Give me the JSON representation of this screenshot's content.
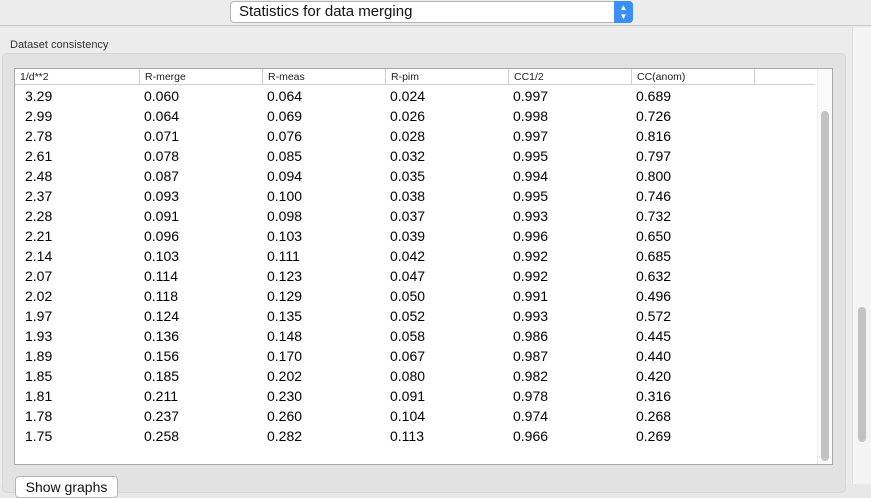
{
  "header": {
    "selector_value": "Statistics for data merging"
  },
  "group": {
    "title": "Dataset consistency"
  },
  "table": {
    "columns": [
      "1/d**2",
      "R-merge",
      "R-meas",
      "R-pim",
      "CC1/2",
      "CC(anom)"
    ],
    "rows": [
      [
        "3.29",
        "0.060",
        "0.064",
        "0.024",
        "0.997",
        "0.689"
      ],
      [
        "2.99",
        "0.064",
        "0.069",
        "0.026",
        "0.998",
        "0.726"
      ],
      [
        "2.78",
        "0.071",
        "0.076",
        "0.028",
        "0.997",
        "0.816"
      ],
      [
        "2.61",
        "0.078",
        "0.085",
        "0.032",
        "0.995",
        "0.797"
      ],
      [
        "2.48",
        "0.087",
        "0.094",
        "0.035",
        "0.994",
        "0.800"
      ],
      [
        "2.37",
        "0.093",
        "0.100",
        "0.038",
        "0.995",
        "0.746"
      ],
      [
        "2.28",
        "0.091",
        "0.098",
        "0.037",
        "0.993",
        "0.732"
      ],
      [
        "2.21",
        "0.096",
        "0.103",
        "0.039",
        "0.996",
        "0.650"
      ],
      [
        "2.14",
        "0.103",
        "0.111",
        "0.042",
        "0.992",
        "0.685"
      ],
      [
        "2.07",
        "0.114",
        "0.123",
        "0.047",
        "0.992",
        "0.632"
      ],
      [
        "2.02",
        "0.118",
        "0.129",
        "0.050",
        "0.991",
        "0.496"
      ],
      [
        "1.97",
        "0.124",
        "0.135",
        "0.052",
        "0.993",
        "0.572"
      ],
      [
        "1.93",
        "0.136",
        "0.148",
        "0.058",
        "0.986",
        "0.445"
      ],
      [
        "1.89",
        "0.156",
        "0.170",
        "0.067",
        "0.987",
        "0.440"
      ],
      [
        "1.85",
        "0.185",
        "0.202",
        "0.080",
        "0.982",
        "0.420"
      ],
      [
        "1.81",
        "0.211",
        "0.230",
        "0.091",
        "0.978",
        "0.316"
      ],
      [
        "1.78",
        "0.237",
        "0.260",
        "0.104",
        "0.974",
        "0.268"
      ],
      [
        "1.75",
        "0.258",
        "0.282",
        "0.113",
        "0.966",
        "0.269"
      ]
    ]
  },
  "buttons": {
    "show_graphs": "Show graphs"
  },
  "colors": {
    "accent": "#3b8ff5"
  }
}
